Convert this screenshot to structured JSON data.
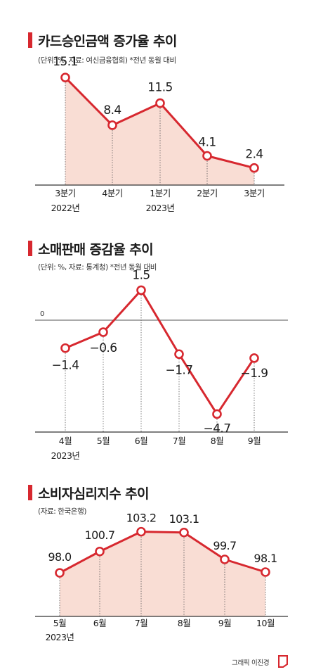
{
  "chart_data": [
    {
      "type": "line",
      "title": "카드승인금액 증가율 추이",
      "note": "(단위: %, 자료: 여신금융협회)  *전년 동월 대비",
      "categories": [
        "3분기",
        "4분기",
        "1분기",
        "2분기",
        "3분기"
      ],
      "category_sublabels": [
        "2022년",
        "",
        "2023년",
        "",
        ""
      ],
      "values": [
        15.1,
        8.4,
        11.5,
        4.1,
        2.4
      ],
      "value_labels": [
        "15.1",
        "8.4",
        "11.5",
        "4.1",
        "2.4"
      ],
      "ylim": [
        0,
        16.5
      ],
      "area_fill": true,
      "line_color": "#d7282f",
      "fill_color": "#f9ddd4"
    },
    {
      "type": "line",
      "title": "소매판매 증감율 추이",
      "note": "(단위: %, 자료: 통계청)  *전년 동월 대비",
      "categories": [
        "4월",
        "5월",
        "6월",
        "7월",
        "8월",
        "9월"
      ],
      "category_sublabels": [
        "2023년",
        "",
        "",
        "",
        "",
        ""
      ],
      "values": [
        -1.4,
        -0.6,
        1.5,
        -1.7,
        -4.7,
        -1.9
      ],
      "value_labels": [
        "-1.4",
        "-0.6",
        "1.5",
        "-1.7",
        "-4.7",
        "-1.9"
      ],
      "zero_label": "0",
      "ylim": [
        -5.6,
        2.5
      ],
      "area_fill": false,
      "line_color": "#d7282f"
    },
    {
      "type": "line",
      "title": "소비자심리지수 추이",
      "note": "(자료: 한국은행)",
      "categories": [
        "5월",
        "6월",
        "7월",
        "8월",
        "9월",
        "10월"
      ],
      "category_sublabels": [
        "2023년",
        "",
        "",
        "",
        "",
        ""
      ],
      "values": [
        98.0,
        100.7,
        103.2,
        103.1,
        99.7,
        98.1
      ],
      "value_labels": [
        "98.0",
        "100.7",
        "103.2",
        "103.1",
        "99.7",
        "98.1"
      ],
      "ylim": [
        92.5,
        104.5
      ],
      "area_fill": true,
      "line_color": "#d7282f",
      "fill_color": "#f9ddd4"
    }
  ],
  "credit": "그래픽 이진경",
  "colors": {
    "accent": "#d7282f",
    "axis": "#333333",
    "dotted": "#555555"
  }
}
